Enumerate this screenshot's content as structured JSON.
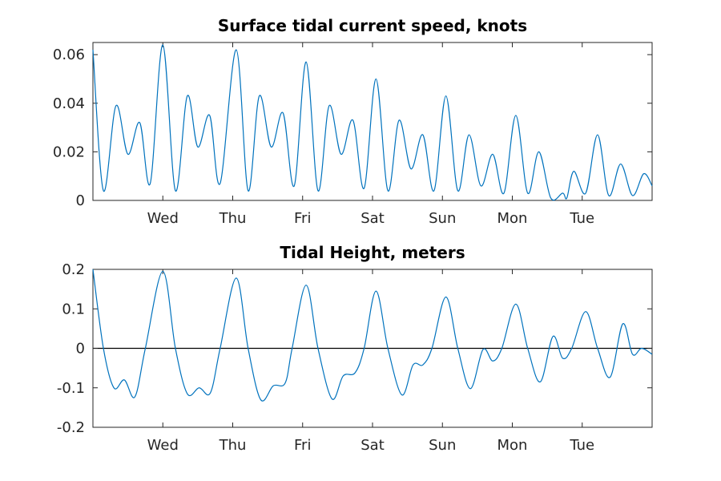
{
  "chart_data": [
    {
      "type": "line",
      "title": "Surface tidal current speed, knots",
      "xlabel": "",
      "ylabel": "",
      "xlim": [
        0,
        8
      ],
      "ylim": [
        0,
        0.065
      ],
      "x_ticks": [
        {
          "x": 1,
          "label": "Wed"
        },
        {
          "x": 2,
          "label": "Thu"
        },
        {
          "x": 3,
          "label": "Fri"
        },
        {
          "x": 4,
          "label": "Sat"
        },
        {
          "x": 5,
          "label": "Sun"
        },
        {
          "x": 6,
          "label": "Mon"
        },
        {
          "x": 7,
          "label": "Tue"
        }
      ],
      "y_ticks": [
        {
          "y": 0,
          "label": "0"
        },
        {
          "y": 0.02,
          "label": "0.02"
        },
        {
          "y": 0.04,
          "label": "0.04"
        },
        {
          "y": 0.06,
          "label": "0.06"
        }
      ],
      "grid": false,
      "zero_line": false,
      "color": "#0072BD",
      "series": [
        {
          "x": [
            0,
            0.15,
            0.33,
            0.5,
            0.67,
            0.82,
            1.0,
            1.18,
            1.35,
            1.5,
            1.67,
            1.82,
            2.05,
            2.22,
            2.38,
            2.55,
            2.72,
            2.88,
            3.05,
            3.22,
            3.38,
            3.55,
            3.72,
            3.88,
            4.05,
            4.22,
            4.38,
            4.55,
            4.72,
            4.88,
            5.05,
            5.22,
            5.38,
            5.55,
            5.72,
            5.88,
            6.05,
            6.22,
            6.38,
            6.55,
            6.72,
            6.78,
            6.88,
            7.05,
            7.22,
            7.38,
            7.55,
            7.72,
            7.88,
            8.0
          ],
          "y": [
            0.062,
            0.004,
            0.039,
            0.019,
            0.032,
            0.007,
            0.064,
            0.004,
            0.043,
            0.022,
            0.035,
            0.007,
            0.062,
            0.004,
            0.043,
            0.022,
            0.036,
            0.006,
            0.057,
            0.004,
            0.039,
            0.019,
            0.033,
            0.005,
            0.05,
            0.004,
            0.033,
            0.013,
            0.027,
            0.004,
            0.043,
            0.004,
            0.027,
            0.006,
            0.019,
            0.003,
            0.035,
            0.003,
            0.02,
            0.001,
            0.003,
            0.001,
            0.012,
            0.003,
            0.027,
            0.002,
            0.015,
            0.002,
            0.011,
            0.006
          ]
        }
      ]
    },
    {
      "type": "line",
      "title": "Tidal Height, meters",
      "xlabel": "",
      "ylabel": "",
      "xlim": [
        0,
        8
      ],
      "ylim": [
        -0.2,
        0.2
      ],
      "x_ticks": [
        {
          "x": 1,
          "label": "Wed"
        },
        {
          "x": 2,
          "label": "Thu"
        },
        {
          "x": 3,
          "label": "Fri"
        },
        {
          "x": 4,
          "label": "Sat"
        },
        {
          "x": 5,
          "label": "Sun"
        },
        {
          "x": 6,
          "label": "Mon"
        },
        {
          "x": 7,
          "label": "Tue"
        }
      ],
      "y_ticks": [
        {
          "y": -0.2,
          "label": "-0.2"
        },
        {
          "y": -0.1,
          "label": "-0.1"
        },
        {
          "y": 0,
          "label": "0"
        },
        {
          "y": 0.1,
          "label": "0.1"
        },
        {
          "y": 0.2,
          "label": "0.2"
        }
      ],
      "grid": false,
      "zero_line": true,
      "color": "#0072BD",
      "series": [
        {
          "x": [
            0,
            0.15,
            0.3,
            0.45,
            0.6,
            0.75,
            1.0,
            1.18,
            1.35,
            1.52,
            1.68,
            1.82,
            2.05,
            2.22,
            2.4,
            2.58,
            2.75,
            2.85,
            3.05,
            3.22,
            3.42,
            3.58,
            3.75,
            3.88,
            4.05,
            4.22,
            4.42,
            4.58,
            4.72,
            4.85,
            5.05,
            5.22,
            5.4,
            5.58,
            5.72,
            5.85,
            6.05,
            6.22,
            6.4,
            6.58,
            6.72,
            6.85,
            7.05,
            7.22,
            7.4,
            7.58,
            7.72,
            7.85,
            8.0
          ],
          "y": [
            0.2,
            0.0,
            -0.1,
            -0.08,
            -0.123,
            0.0,
            0.195,
            0.0,
            -0.115,
            -0.1,
            -0.113,
            0.0,
            0.178,
            0.0,
            -0.13,
            -0.095,
            -0.088,
            0.0,
            0.16,
            0.0,
            -0.128,
            -0.07,
            -0.062,
            0.0,
            0.145,
            0.0,
            -0.118,
            -0.042,
            -0.042,
            0.0,
            0.13,
            0.0,
            -0.102,
            -0.003,
            -0.032,
            0.0,
            0.112,
            0.0,
            -0.085,
            0.03,
            -0.025,
            0.0,
            0.093,
            0.0,
            -0.073,
            0.062,
            -0.015,
            0.0,
            -0.015
          ]
        }
      ]
    }
  ]
}
